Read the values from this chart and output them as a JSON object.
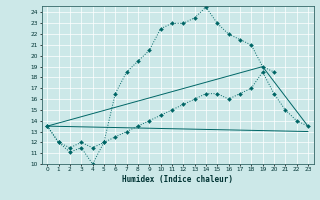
{
  "title": "",
  "xlabel": "Humidex (Indice chaleur)",
  "bg_color": "#cce8e8",
  "line_color": "#006666",
  "xlim": [
    -0.5,
    23.5
  ],
  "ylim": [
    10,
    24.6
  ],
  "yticks": [
    10,
    11,
    12,
    13,
    14,
    15,
    16,
    17,
    18,
    19,
    20,
    21,
    22,
    23,
    24
  ],
  "xticks": [
    0,
    1,
    2,
    3,
    4,
    5,
    6,
    7,
    8,
    9,
    10,
    11,
    12,
    13,
    14,
    15,
    16,
    17,
    18,
    19,
    20,
    21,
    22,
    23
  ],
  "line1_x": [
    0,
    1,
    2,
    3,
    4,
    5,
    6,
    7,
    8,
    9,
    10,
    11,
    12,
    13,
    14,
    15,
    16,
    17,
    18,
    19,
    20
  ],
  "line1_y": [
    13.5,
    12.0,
    11.1,
    11.5,
    10.0,
    12.0,
    16.5,
    18.5,
    19.5,
    20.5,
    22.5,
    23.0,
    23.0,
    23.5,
    24.5,
    23.0,
    22.0,
    21.5,
    21.0,
    19.0,
    18.5
  ],
  "line2_x": [
    0,
    1,
    2,
    3,
    4,
    5,
    6,
    7,
    8,
    9,
    10,
    11,
    12,
    13,
    14,
    15,
    16,
    17,
    18,
    19,
    20,
    21,
    22,
    23
  ],
  "line2_y": [
    13.5,
    12.0,
    11.5,
    12.0,
    11.5,
    12.0,
    12.5,
    13.0,
    13.5,
    14.0,
    14.5,
    15.0,
    15.5,
    16.0,
    16.5,
    16.5,
    16.0,
    16.5,
    17.0,
    18.5,
    16.5,
    15.0,
    14.0,
    13.5
  ],
  "line3_x": [
    0,
    23
  ],
  "line3_y": [
    13.5,
    13.0
  ],
  "line4_x": [
    0,
    19,
    23
  ],
  "line4_y": [
    13.5,
    19.0,
    13.5
  ]
}
